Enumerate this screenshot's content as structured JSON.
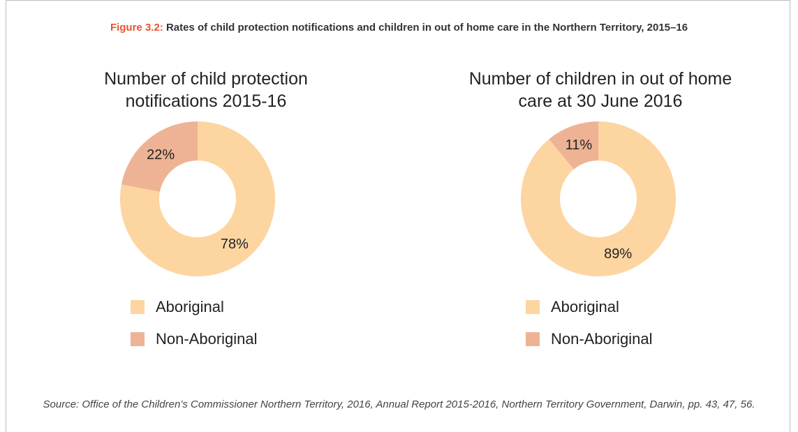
{
  "figure": {
    "label": "Figure 3.2:",
    "title": "Rates of child protection notifications and children in out of home care in the Northern Territory, 2015–16",
    "source": "Source: Office of the Children’s Commissioner Northern Territory, 2016, Annual Report 2015-2016, Northern Territory Government, Darwin, pp. 43, 47, 56."
  },
  "colors": {
    "aboriginal": "#fdd5a1",
    "non_aboriginal": "#eeb394",
    "label_accent": "#e8542f"
  },
  "chart_data": [
    {
      "type": "pie",
      "donut": true,
      "title": "Number of child protection notifications 2015-16",
      "categories": [
        "Aboriginal",
        "Non-Aboriginal"
      ],
      "values": [
        78,
        22
      ],
      "value_labels": [
        "78%",
        "22%"
      ],
      "legend": "bottom"
    },
    {
      "type": "pie",
      "donut": true,
      "title": "Number of children in out of home care at 30 June 2016",
      "categories": [
        "Aboriginal",
        "Non-Aboriginal"
      ],
      "values": [
        89,
        11
      ],
      "value_labels": [
        "89%",
        "11%"
      ],
      "legend": "bottom"
    }
  ]
}
